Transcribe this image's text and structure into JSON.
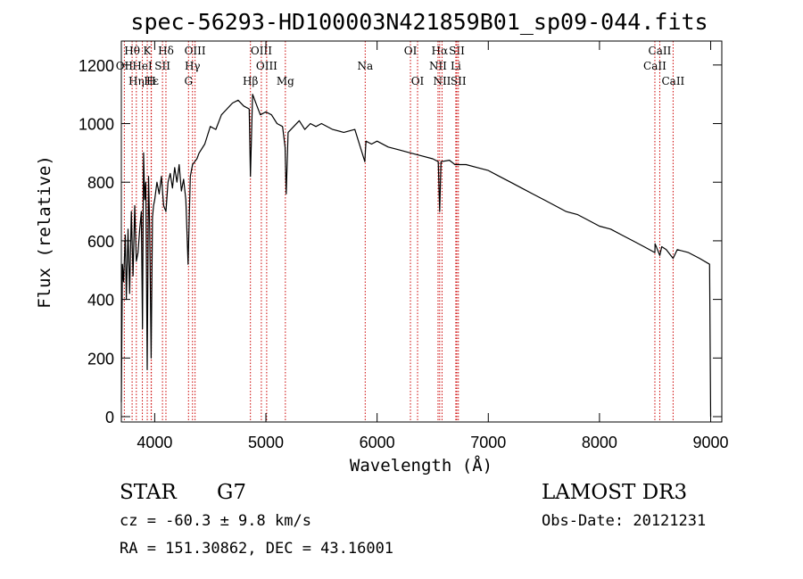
{
  "chart_data": {
    "type": "line",
    "title": "spec-56293-HD100003N421859B01_sp09-044.fits",
    "xlabel": "Wavelength (Å)",
    "ylabel": "Flux (relative)",
    "xlim": [
      3700,
      9100
    ],
    "ylim": [
      0,
      1300
    ],
    "x_ticks": [
      4000,
      5000,
      6000,
      7000,
      8000,
      9000
    ],
    "y_ticks": [
      0,
      200,
      400,
      600,
      800,
      1000,
      1200
    ],
    "series": [
      {
        "name": "spectrum",
        "x": [
          3700,
          3710,
          3720,
          3735,
          3745,
          3760,
          3775,
          3790,
          3805,
          3820,
          3835,
          3850,
          3865,
          3880,
          3890,
          3900,
          3910,
          3920,
          3933,
          3945,
          3955,
          3968,
          3980,
          3990,
          4000,
          4020,
          4040,
          4060,
          4080,
          4101,
          4120,
          4140,
          4160,
          4180,
          4200,
          4220,
          4240,
          4260,
          4280,
          4300,
          4320,
          4340,
          4360,
          4380,
          4400,
          4450,
          4500,
          4550,
          4600,
          4650,
          4700,
          4750,
          4800,
          4850,
          4861,
          4880,
          4920,
          4950,
          5000,
          5050,
          5100,
          5150,
          5172,
          5183,
          5200,
          5250,
          5300,
          5350,
          5400,
          5450,
          5500,
          5600,
          5700,
          5800,
          5890,
          5900,
          5950,
          6000,
          6100,
          6200,
          6300,
          6400,
          6500,
          6550,
          6563,
          6575,
          6650,
          6700,
          6800,
          6900,
          7000,
          7100,
          7200,
          7300,
          7400,
          7500,
          7600,
          7700,
          7800,
          7900,
          8000,
          8100,
          8200,
          8300,
          8400,
          8498,
          8500,
          8542,
          8560,
          8600,
          8662,
          8700,
          8800,
          8900,
          8990,
          9000
        ],
        "values": [
          50,
          520,
          460,
          620,
          400,
          640,
          420,
          700,
          480,
          720,
          530,
          560,
          640,
          700,
          300,
          900,
          740,
          800,
          160,
          820,
          640,
          200,
          680,
          720,
          740,
          800,
          760,
          820,
          720,
          700,
          800,
          830,
          780,
          850,
          800,
          860,
          770,
          810,
          740,
          520,
          820,
          860,
          870,
          880,
          900,
          930,
          990,
          980,
          1030,
          1050,
          1070,
          1080,
          1060,
          1050,
          820,
          1100,
          1060,
          1030,
          1040,
          1030,
          1000,
          990,
          920,
          760,
          970,
          990,
          1010,
          980,
          1000,
          990,
          1000,
          980,
          970,
          980,
          870,
          940,
          930,
          940,
          920,
          910,
          900,
          890,
          880,
          870,
          700,
          870,
          875,
          860,
          860,
          850,
          840,
          820,
          800,
          780,
          760,
          740,
          720,
          700,
          690,
          670,
          650,
          640,
          620,
          600,
          580,
          560,
          590,
          550,
          580,
          570,
          540,
          570,
          560,
          540,
          520,
          0
        ]
      }
    ],
    "line_markers": [
      {
        "label": "Hθ",
        "x": 3797,
        "row": 1
      },
      {
        "label": "OII",
        "x": 3727,
        "row": 2
      },
      {
        "label": "Hη",
        "x": 3835,
        "row": 3
      },
      {
        "label": "K",
        "x": 3933,
        "row": 1
      },
      {
        "label": "HeI",
        "x": 3889,
        "row": 2
      },
      {
        "label": "Hε",
        "x": 3970,
        "row": 3
      },
      {
        "label": "Hδ",
        "x": 4101,
        "row": 1
      },
      {
        "label": "SII",
        "x": 4070,
        "row": 2
      },
      {
        "label": "H",
        "x": 3968,
        "row": 3
      },
      {
        "label": "OIII",
        "x": 4363,
        "row": 1
      },
      {
        "label": "Hγ",
        "x": 4340,
        "row": 2
      },
      {
        "label": "G",
        "x": 4304,
        "row": 3
      },
      {
        "label": "OIII",
        "x": 4959,
        "row": 1
      },
      {
        "label": "OIII",
        "x": 5007,
        "row": 2
      },
      {
        "label": "Hβ",
        "x": 4861,
        "row": 3
      },
      {
        "label": "Mg",
        "x": 5175,
        "row": 3
      },
      {
        "label": "Na",
        "x": 5893,
        "row": 2
      },
      {
        "label": "OI",
        "x": 6300,
        "row": 1
      },
      {
        "label": "OI",
        "x": 6364,
        "row": 3
      },
      {
        "label": "Hα",
        "x": 6563,
        "row": 1
      },
      {
        "label": "NII",
        "x": 6548,
        "row": 2
      },
      {
        "label": "NII",
        "x": 6584,
        "row": 3
      },
      {
        "label": "SII",
        "x": 6717,
        "row": 1
      },
      {
        "label": "Li",
        "x": 6708,
        "row": 2
      },
      {
        "label": "SII",
        "x": 6731,
        "row": 3
      },
      {
        "label": "CaII",
        "x": 8542,
        "row": 1
      },
      {
        "label": "CaII",
        "x": 8498,
        "row": 2
      },
      {
        "label": "CaII",
        "x": 8662,
        "row": 3
      }
    ],
    "grid": false,
    "legend": "none"
  },
  "footer": {
    "object_class": "STAR",
    "subclass": "G7",
    "redshift_text": "cz = -60.3 ± 9.8 km/s",
    "coords_text": "RA = 151.30862, DEC =  43.16001",
    "survey": "LAMOST DR3",
    "obs_date_text": "Obs-Date: 20121231"
  },
  "colors": {
    "spectrum": "#000000",
    "marker_line": "#cc0000",
    "axes": "#000000"
  }
}
